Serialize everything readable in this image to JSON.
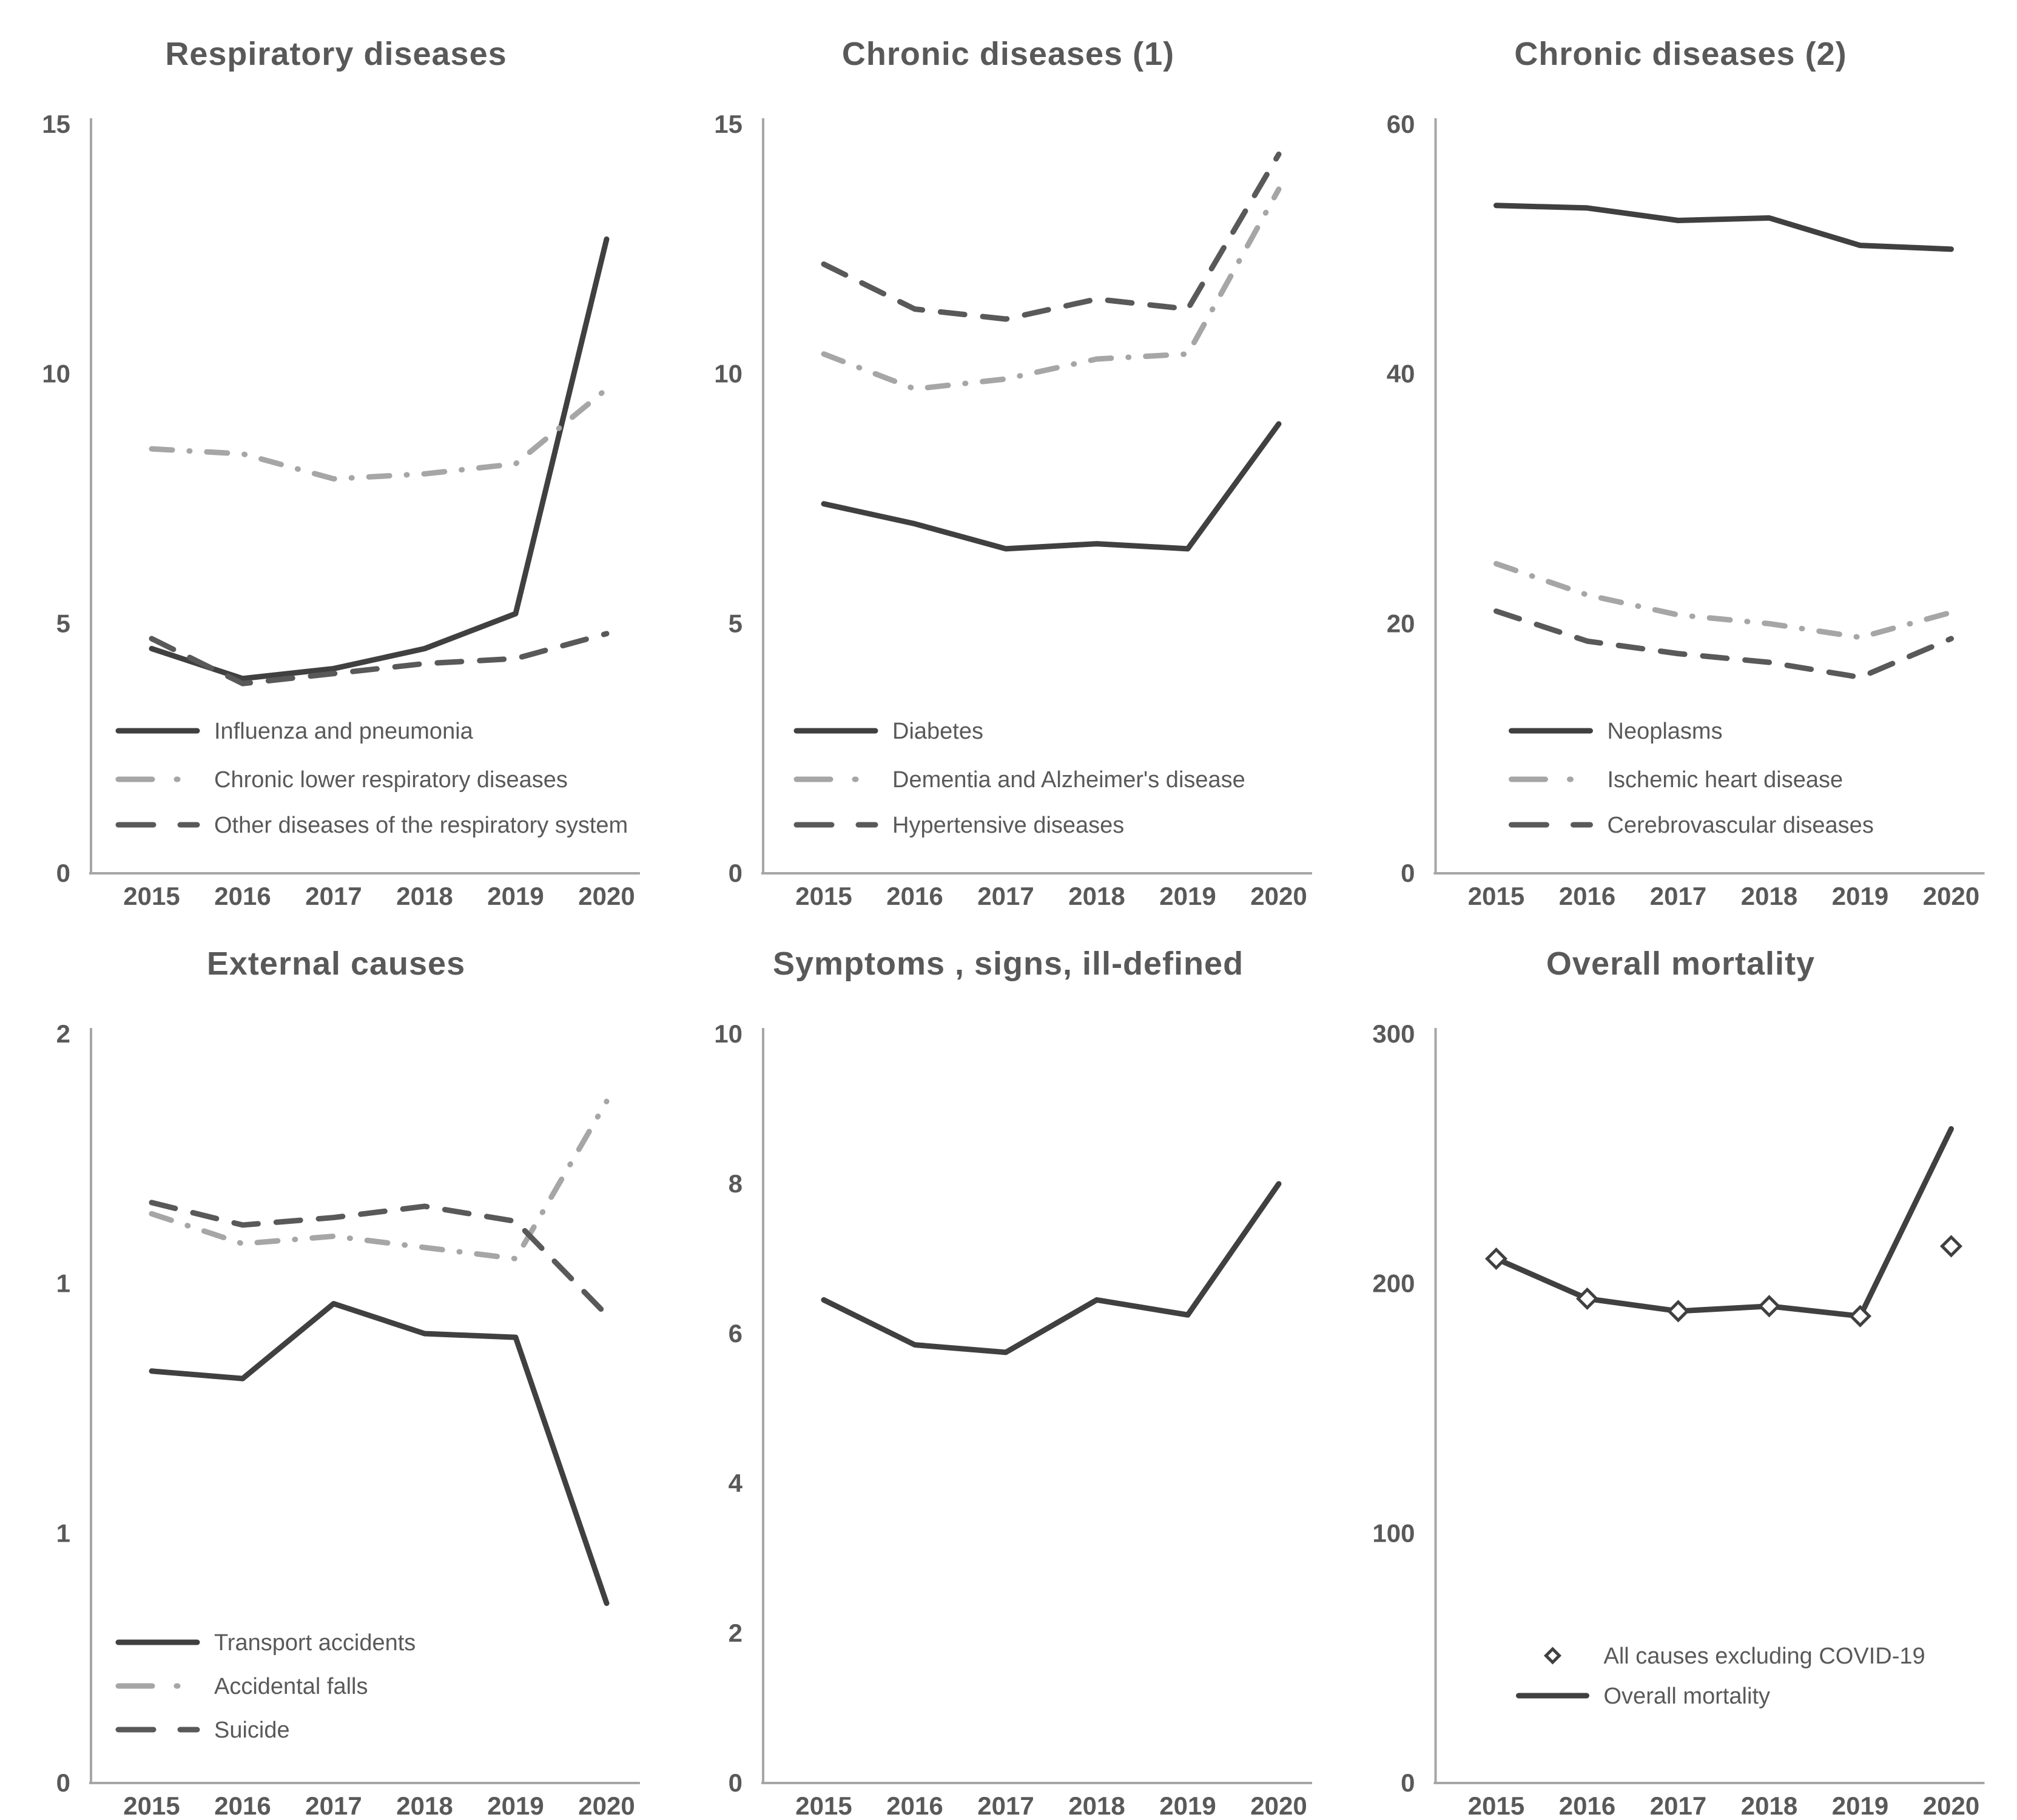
{
  "page": {
    "background_color": "#ffffff",
    "text_color": "#595959",
    "axis_color": "#a6a6a6"
  },
  "chart_data": [
    {
      "id": "respiratory-diseases",
      "type": "line",
      "title": "Respiratory diseases",
      "categories": [
        "2015",
        "2016",
        "2017",
        "2018",
        "2019",
        "2020"
      ],
      "ylim": [
        0,
        15
      ],
      "yticks": [
        {
          "label": "0",
          "value": 0
        },
        {
          "label": "5",
          "value": 5
        },
        {
          "label": "10",
          "value": 10
        },
        {
          "label": "15",
          "value": 15
        }
      ],
      "grid": false,
      "legend_position": "inside-bottom-left",
      "series": [
        {
          "name": "Influenza and pneumonia",
          "style": "solid",
          "color": "#404040",
          "values": [
            4.5,
            3.9,
            4.1,
            4.5,
            5.2,
            12.7
          ]
        },
        {
          "name": "Chronic lower respiratory diseases",
          "style": "dash-dot",
          "color": "#a6a6a6",
          "values": [
            8.5,
            8.4,
            7.9,
            8.0,
            8.2,
            9.7
          ]
        },
        {
          "name": "Other diseases of the respiratory system",
          "style": "dashed",
          "color": "#595959",
          "values": [
            4.7,
            3.8,
            4.0,
            4.2,
            4.3,
            4.8
          ]
        }
      ]
    },
    {
      "id": "chronic-diseases-1",
      "type": "line",
      "title": "Chronic diseases (1)",
      "categories": [
        "2015",
        "2016",
        "2017",
        "2018",
        "2019",
        "2020"
      ],
      "ylim": [
        0,
        15
      ],
      "yticks": [
        {
          "label": "0",
          "value": 0
        },
        {
          "label": "5",
          "value": 5
        },
        {
          "label": "10",
          "value": 10
        },
        {
          "label": "15",
          "value": 15
        }
      ],
      "grid": false,
      "legend_position": "inside-bottom-left",
      "series": [
        {
          "name": "Diabetes",
          "style": "solid",
          "color": "#404040",
          "values": [
            7.4,
            7.0,
            6.5,
            6.6,
            6.5,
            9.0
          ]
        },
        {
          "name": "Dementia and Alzheimer's disease",
          "style": "dash-dot",
          "color": "#a6a6a6",
          "values": [
            10.4,
            9.7,
            9.9,
            10.3,
            10.4,
            13.7
          ]
        },
        {
          "name": "Hypertensive diseases",
          "style": "dashed",
          "color": "#595959",
          "values": [
            12.2,
            11.3,
            11.1,
            11.5,
            11.3,
            14.4
          ]
        }
      ]
    },
    {
      "id": "chronic-diseases-2",
      "type": "line",
      "title": "Chronic diseases (2)",
      "categories": [
        "2015",
        "2016",
        "2017",
        "2018",
        "2019",
        "2020"
      ],
      "ylim": [
        0,
        60
      ],
      "yticks": [
        {
          "label": "0",
          "value": 0
        },
        {
          "label": "20",
          "value": 20
        },
        {
          "label": "40",
          "value": 40
        },
        {
          "label": "60",
          "value": 60
        }
      ],
      "grid": false,
      "legend_position": "inside-bottom-left",
      "series": [
        {
          "name": "Neoplasms",
          "style": "solid",
          "color": "#404040",
          "values": [
            53.5,
            53.3,
            52.3,
            52.5,
            50.3,
            50.0
          ]
        },
        {
          "name": "Ischemic heart disease",
          "style": "dash-dot",
          "color": "#a6a6a6",
          "values": [
            24.8,
            22.3,
            20.7,
            20.0,
            18.9,
            20.9
          ]
        },
        {
          "name": "Cerebrovascular diseases",
          "style": "dashed",
          "color": "#595959",
          "values": [
            21.0,
            18.6,
            17.6,
            16.9,
            15.7,
            18.8
          ]
        }
      ]
    },
    {
      "id": "external-causes",
      "type": "line",
      "title": "External causes",
      "categories": [
        "2015",
        "2016",
        "2017",
        "2018",
        "2019",
        "2020"
      ],
      "ylim": [
        0,
        2
      ],
      "yticks": [
        {
          "label": "0",
          "value": 0
        },
        {
          "label": "1",
          "value": 0.6667
        },
        {
          "label": "1",
          "value": 1.3333
        },
        {
          "label": "2",
          "value": 2
        }
      ],
      "grid": false,
      "legend_position": "inside-bottom-left",
      "series": [
        {
          "name": "Transport accidents",
          "style": "solid",
          "color": "#404040",
          "values": [
            1.1,
            1.08,
            1.28,
            1.2,
            1.19,
            0.48
          ]
        },
        {
          "name": "Accidental falls",
          "style": "dash-dot",
          "color": "#a6a6a6",
          "values": [
            1.52,
            1.44,
            1.46,
            1.43,
            1.4,
            1.82
          ]
        },
        {
          "name": "Suicide",
          "style": "dashed",
          "color": "#595959",
          "values": [
            1.55,
            1.49,
            1.51,
            1.54,
            1.5,
            1.25
          ]
        }
      ]
    },
    {
      "id": "symptoms-signs-ill-defined",
      "type": "line",
      "title": "Symptoms , signs, ill-defined",
      "categories": [
        "2015",
        "2016",
        "2017",
        "2018",
        "2019",
        "2020"
      ],
      "ylim": [
        0,
        10
      ],
      "yticks": [
        {
          "label": "0",
          "value": 0
        },
        {
          "label": "2",
          "value": 2
        },
        {
          "label": "4",
          "value": 4
        },
        {
          "label": "6",
          "value": 6
        },
        {
          "label": "8",
          "value": 8
        },
        {
          "label": "10",
          "value": 10
        }
      ],
      "grid": false,
      "legend_position": "none",
      "series": [
        {
          "name": "Symptoms, signs, ill-defined",
          "style": "solid",
          "color": "#404040",
          "values": [
            6.45,
            5.85,
            5.75,
            6.45,
            6.25,
            8.0
          ]
        }
      ]
    },
    {
      "id": "overall-mortality",
      "type": "line",
      "title": "Overall mortality",
      "categories": [
        "2015",
        "2016",
        "2017",
        "2018",
        "2019",
        "2020"
      ],
      "ylim": [
        0,
        300
      ],
      "yticks": [
        {
          "label": "0",
          "value": 0
        },
        {
          "label": "100",
          "value": 100
        },
        {
          "label": "200",
          "value": 200
        },
        {
          "label": "300",
          "value": 300
        }
      ],
      "grid": false,
      "legend_position": "inside-bottom-center",
      "series": [
        {
          "name": "All causes excluding COVID-19",
          "style": "markers",
          "marker": "diamond",
          "color": "#404040",
          "values": [
            210,
            194,
            189,
            191,
            187,
            215
          ]
        },
        {
          "name": "Overall mortality",
          "style": "solid",
          "color": "#404040",
          "values": [
            210,
            194,
            189,
            191,
            187,
            262
          ]
        }
      ]
    }
  ]
}
